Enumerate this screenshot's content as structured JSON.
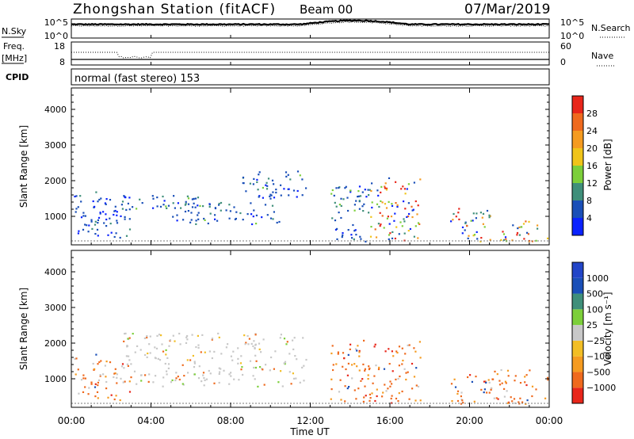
{
  "header": {
    "station": "Zhongshan Station (fitACF)",
    "beam": "Beam 00",
    "date": "07/Mar/2019"
  },
  "top_panels": {
    "nsky_label": "N.Sky",
    "nsky_tick_top": "10^5",
    "nsky_tick_bottom": "10^0",
    "nsearch_label": "N.Search",
    "nsearch_tick_top": "10^5",
    "nsearch_tick_bottom": "10^0",
    "freq_label_1": "Freq.",
    "freq_label_2": "[MHz]",
    "freq_tick_top": "18",
    "freq_tick_bottom": "8",
    "nave_label": "Nave",
    "nave_tick_top": "60",
    "nave_tick_bottom": "0",
    "cpid_label": "CPID",
    "cpid_text": "normal (fast stereo) 153"
  },
  "colors": {
    "power_scale": [
      "#0a22ff",
      "#1a4fb8",
      "#3f8f7a",
      "#7ccf3a",
      "#f0c419",
      "#f59b20",
      "#ef6a1e",
      "#e8261a"
    ],
    "velocity_scale": [
      "#e8261a",
      "#ef6a1e",
      "#f59b20",
      "#f2be25",
      "#c8c8c8",
      "#7ccf3a",
      "#3f8f7a",
      "#1a4fb8",
      "#2245c8"
    ]
  },
  "chart_data": [
    {
      "type": "heatmap",
      "ylabel": "Slant Range [km]",
      "xlabel": "",
      "x_ticks": [
        "00:00",
        "04:00",
        "08:00",
        "12:00",
        "16:00",
        "20:00",
        "00:00"
      ],
      "y_ticks": [
        "1000",
        "2000",
        "3000",
        "4000"
      ],
      "ylim": [
        200,
        4600
      ],
      "colorbar": {
        "label": "Power [dB]",
        "ticks": [
          "4",
          "8",
          "12",
          "16",
          "20",
          "24",
          "28"
        ],
        "range": [
          0,
          32
        ]
      },
      "echo_regions": [
        {
          "t_start": 0.0,
          "t_end": 3.0,
          "r_start": 400,
          "r_end": 1700,
          "level": "weak"
        },
        {
          "t_start": 2.5,
          "t_end": 7.5,
          "r_start": 1200,
          "r_end": 1600,
          "level": "moderate"
        },
        {
          "t_start": 5.0,
          "t_end": 10.5,
          "r_start": 800,
          "r_end": 1400,
          "level": "moderate"
        },
        {
          "t_start": 8.5,
          "t_end": 11.8,
          "r_start": 1500,
          "r_end": 2300,
          "level": "moderate"
        },
        {
          "t_start": 13.0,
          "t_end": 15.0,
          "r_start": 300,
          "r_end": 1900,
          "level": "moderate"
        },
        {
          "t_start": 15.0,
          "t_end": 17.5,
          "r_start": 300,
          "r_end": 2100,
          "level": "strong"
        },
        {
          "t_start": 19.0,
          "t_end": 21.0,
          "r_start": 300,
          "r_end": 1300,
          "level": "strong"
        },
        {
          "t_start": 21.5,
          "t_end": 24.0,
          "r_start": 300,
          "r_end": 900,
          "level": "strong"
        }
      ]
    },
    {
      "type": "heatmap",
      "ylabel": "Slant Range [km]",
      "xlabel": "Time UT",
      "x_ticks": [
        "00:00",
        "04:00",
        "08:00",
        "12:00",
        "16:00",
        "20:00",
        "00:00"
      ],
      "y_ticks": [
        "1000",
        "2000",
        "3000",
        "4000"
      ],
      "ylim": [
        200,
        4600
      ],
      "colorbar": {
        "label": "Velocity [m s⁻¹]",
        "ticks": [
          "1000",
          "500",
          "100",
          "25",
          "−25",
          "−100",
          "−500",
          "−1000"
        ],
        "range": [
          -1000,
          1000
        ]
      },
      "echo_regions": [
        {
          "t_start": 0.0,
          "t_end": 3.0,
          "r_start": 400,
          "r_end": 1700,
          "level": "negative"
        },
        {
          "t_start": 2.5,
          "t_end": 11.8,
          "r_start": 800,
          "r_end": 2300,
          "level": "near-zero"
        },
        {
          "t_start": 13.0,
          "t_end": 17.5,
          "r_start": 300,
          "r_end": 2100,
          "level": "negative"
        },
        {
          "t_start": 19.0,
          "t_end": 24.0,
          "r_start": 300,
          "r_end": 1300,
          "level": "negative"
        }
      ]
    }
  ]
}
